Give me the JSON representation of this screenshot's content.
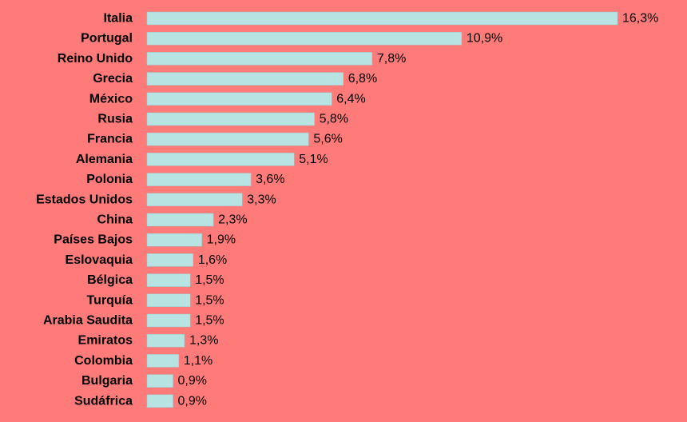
{
  "chart_data": {
    "type": "bar",
    "orientation": "horizontal",
    "categories": [
      "Italia",
      "Portugal",
      "Reino Unido",
      "Grecia",
      "México",
      "Rusia",
      "Francia",
      "Alemania",
      "Polonia",
      "Estados Unidos",
      "China",
      "Países Bajos",
      "Eslovaquia",
      "Bélgica",
      "Turquía",
      "Arabia Saudita",
      "Emiratos",
      "Colombia",
      "Bulgaria",
      "Sudáfrica"
    ],
    "values": [
      16.3,
      10.9,
      7.8,
      6.8,
      6.4,
      5.8,
      5.6,
      5.1,
      3.6,
      3.3,
      2.3,
      1.9,
      1.6,
      1.5,
      1.5,
      1.5,
      1.3,
      1.1,
      0.9,
      0.9
    ],
    "value_labels": [
      "16,3%",
      "10,9%",
      "7,8%",
      "6,8%",
      "6,4%",
      "5,8%",
      "5,6%",
      "5,1%",
      "3,6%",
      "3,3%",
      "2,3%",
      "1,9%",
      "1,6%",
      "1,5%",
      "1,5%",
      "1,5%",
      "1,3%",
      "1,1%",
      "0,9%",
      "0,9%"
    ],
    "xlim": [
      0,
      16.3
    ],
    "grid": false,
    "legend": "none",
    "colors": {
      "background": "#FF7B79",
      "bar": "#B7E3E2"
    }
  }
}
